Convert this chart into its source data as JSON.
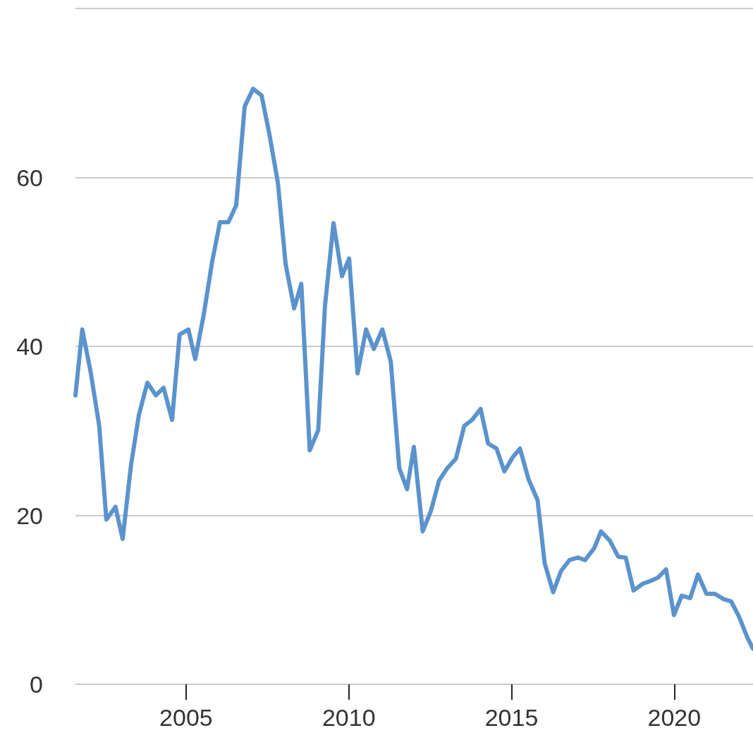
{
  "chart_data": {
    "type": "line",
    "x": [
      2001.6,
      2001.81,
      2002.07,
      2002.33,
      2002.55,
      2002.83,
      2003.05,
      2003.31,
      2003.55,
      2003.81,
      2004.07,
      2004.31,
      2004.57,
      2004.8,
      2005.07,
      2005.28,
      2005.54,
      2005.8,
      2006.04,
      2006.3,
      2006.54,
      2006.8,
      2007.06,
      2007.32,
      2007.56,
      2007.82,
      2008.06,
      2008.32,
      2008.54,
      2008.8,
      2009.06,
      2009.27,
      2009.53,
      2009.79,
      2010.01,
      2010.27,
      2010.53,
      2010.77,
      2011.03,
      2011.29,
      2011.55,
      2011.79,
      2012.0,
      2012.27,
      2012.53,
      2012.77,
      2013.03,
      2013.29,
      2013.55,
      2013.79,
      2014.05,
      2014.28,
      2014.54,
      2014.78,
      2015.04,
      2015.26,
      2015.52,
      2015.8,
      2016.02,
      2016.28,
      2016.52,
      2016.78,
      2017.04,
      2017.26,
      2017.54,
      2017.75,
      2018.02,
      2018.28,
      2018.51,
      2018.75,
      2019.03,
      2019.25,
      2019.49,
      2019.75,
      2019.99,
      2020.23,
      2020.49,
      2020.73,
      2020.99,
      2021.25,
      2021.51,
      2021.75,
      2021.99,
      2022.25,
      2022.42
    ],
    "series": [
      {
        "color": "#5b93cc",
        "values": [
          34.2,
          42.0,
          36.9,
          30.6,
          19.5,
          21.0,
          17.2,
          26.0,
          31.9,
          35.7,
          34.2,
          35.1,
          31.3,
          41.4,
          42.0,
          38.5,
          43.7,
          50.0,
          54.7,
          54.7,
          56.7,
          68.4,
          70.5,
          69.7,
          65.1,
          59.4,
          49.7,
          44.5,
          47.4,
          27.7,
          30.1,
          44.9,
          54.6,
          48.3,
          50.4,
          36.8,
          42.0,
          39.7,
          42.0,
          38.2,
          25.6,
          23.1,
          28.1,
          18.1,
          20.6,
          24.1,
          25.6,
          26.7,
          30.6,
          31.3,
          32.6,
          28.5,
          27.9,
          25.2,
          26.9,
          27.9,
          24.3,
          21.8,
          14.3,
          10.9,
          13.4,
          14.7,
          15.0,
          14.7,
          16.1,
          18.1,
          17.0,
          15.1,
          15.0,
          11.1,
          11.9,
          12.2,
          12.6,
          13.6,
          8.2,
          10.5,
          10.2,
          13.0,
          10.7,
          10.7,
          10.1,
          9.8,
          8.0,
          5.5,
          4.2
        ]
      }
    ],
    "xlim": [
      2001.6,
      2022.42
    ],
    "xticks": [
      2005,
      2010,
      2015,
      2020
    ],
    "ylim": [
      0,
      80
    ],
    "yticks": [
      0,
      20,
      40,
      60,
      {
        "value": 80,
        "label": null
      }
    ],
    "grid": "y",
    "marker": "none",
    "line_style": "solid"
  }
}
